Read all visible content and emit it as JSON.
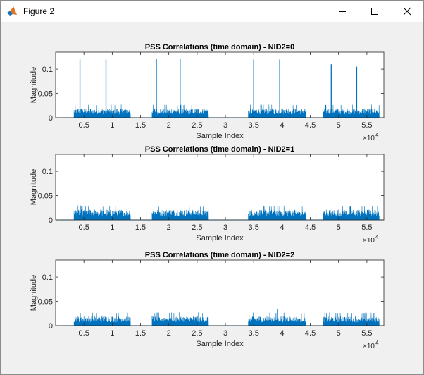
{
  "window": {
    "title": "Figure 2",
    "app_icon": "matlab-icon",
    "controls": [
      "minimize-icon",
      "maximize-icon",
      "close-icon"
    ]
  },
  "colors": {
    "line": "#0072bd",
    "axes_bg": "#ffffff",
    "figure_bg": "#f0f0f0",
    "text": "#262626"
  },
  "chart_data": [
    {
      "type": "line",
      "title": "PSS Correlations (time domain) - NID2=0",
      "xlabel": "Sample Index",
      "ylabel": "Magnitude",
      "x_exponent_label": "×10",
      "x_exponent": "4",
      "xlim": [
        0,
        58000
      ],
      "ylim": [
        0,
        0.135
      ],
      "xtick_values": [
        5000,
        10000,
        15000,
        20000,
        25000,
        30000,
        35000,
        40000,
        45000,
        50000,
        55000
      ],
      "xtick_labels": [
        "0.5",
        "1",
        "1.5",
        "2",
        "2.5",
        "3",
        "3.5",
        "4",
        "4.5",
        "5",
        "5.5"
      ],
      "ytick_values": [
        0,
        0.05,
        0.1
      ],
      "ytick_labels": [
        "0",
        "0.05",
        "0.1"
      ],
      "active_segments": [
        [
          3200,
          13200
        ],
        [
          17000,
          27000
        ],
        [
          34000,
          44200
        ],
        [
          47200,
          57200
        ]
      ],
      "noise_level": 0.02,
      "peaks": [
        {
          "x": 4300,
          "y": 0.12
        },
        {
          "x": 8900,
          "y": 0.12
        },
        {
          "x": 17800,
          "y": 0.122
        },
        {
          "x": 22000,
          "y": 0.122
        },
        {
          "x": 35000,
          "y": 0.12
        },
        {
          "x": 39600,
          "y": 0.12
        },
        {
          "x": 48700,
          "y": 0.11
        },
        {
          "x": 53200,
          "y": 0.105
        }
      ]
    },
    {
      "type": "line",
      "title": "PSS Correlations (time domain) - NID2=1",
      "xlabel": "Sample Index",
      "ylabel": "Magnitude",
      "x_exponent_label": "×10",
      "x_exponent": "4",
      "xlim": [
        0,
        58000
      ],
      "ylim": [
        0,
        0.135
      ],
      "xtick_values": [
        5000,
        10000,
        15000,
        20000,
        25000,
        30000,
        35000,
        40000,
        45000,
        50000,
        55000
      ],
      "xtick_labels": [
        "0.5",
        "1",
        "1.5",
        "2",
        "2.5",
        "3",
        "3.5",
        "4",
        "4.5",
        "5",
        "5.5"
      ],
      "ytick_values": [
        0,
        0.05,
        0.1
      ],
      "ytick_labels": [
        "0",
        "0.05",
        "0.1"
      ],
      "active_segments": [
        [
          3200,
          13200
        ],
        [
          17000,
          27000
        ],
        [
          34000,
          44200
        ],
        [
          47200,
          57200
        ]
      ],
      "noise_level": 0.022,
      "peaks": []
    },
    {
      "type": "line",
      "title": "PSS Correlations (time domain) - NID2=2",
      "xlabel": "Sample Index",
      "ylabel": "Magnitude",
      "x_exponent_label": "×10",
      "x_exponent": "4",
      "xlim": [
        0,
        58000
      ],
      "ylim": [
        0,
        0.135
      ],
      "xtick_values": [
        5000,
        10000,
        15000,
        20000,
        25000,
        30000,
        35000,
        40000,
        45000,
        50000,
        55000
      ],
      "xtick_labels": [
        "0.5",
        "1",
        "1.5",
        "2",
        "2.5",
        "3",
        "3.5",
        "4",
        "4.5",
        "5",
        "5.5"
      ],
      "ytick_values": [
        0,
        0.05,
        0.1
      ],
      "ytick_labels": [
        "0",
        "0.05",
        "0.1"
      ],
      "active_segments": [
        [
          3200,
          13200
        ],
        [
          17000,
          27000
        ],
        [
          34000,
          44200
        ],
        [
          47200,
          57200
        ]
      ],
      "noise_level": 0.02,
      "peaks": [
        {
          "x": 39200,
          "y": 0.034
        }
      ]
    }
  ]
}
